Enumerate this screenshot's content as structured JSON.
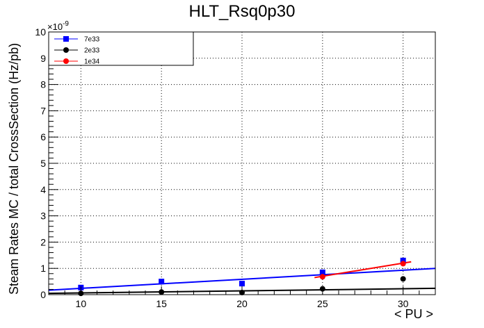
{
  "chart_data": {
    "type": "scatter",
    "title": "HLT_Rsq0p30",
    "xlabel": "< PU >",
    "ylabel": "Steam Rates MC / total CrossSection (Hz/pb)",
    "y_multiplier_label": "×10",
    "y_multiplier_exponent": "-9",
    "xlim": [
      8,
      32
    ],
    "ylim": [
      0,
      10
    ],
    "x_ticks": [
      10,
      15,
      20,
      25,
      30
    ],
    "y_ticks": [
      0,
      1,
      2,
      3,
      4,
      5,
      6,
      7,
      8,
      9,
      10
    ],
    "grid": true,
    "legend_position": "top-left",
    "series": [
      {
        "name": "7e33",
        "color": "#0000ff",
        "marker": "square",
        "x": [
          10,
          15,
          20,
          25,
          30
        ],
        "y": [
          0.27,
          0.5,
          0.42,
          0.85,
          1.3
        ],
        "fit": {
          "x": [
            8,
            32
          ],
          "y": [
            0.17,
            1.0
          ]
        }
      },
      {
        "name": "2e33",
        "color": "#000000",
        "marker": "circle",
        "x": [
          10,
          15,
          20,
          25,
          30
        ],
        "y": [
          0.05,
          0.1,
          0.08,
          0.22,
          0.6
        ],
        "fit": {
          "x": [
            8,
            32
          ],
          "y": [
            0.05,
            0.24
          ]
        }
      },
      {
        "name": "1e34",
        "color": "#ff0000",
        "marker": "circle",
        "x": [
          25,
          30
        ],
        "y": [
          0.68,
          1.18
        ],
        "fit": {
          "x": [
            24.5,
            30.5
          ],
          "y": [
            0.65,
            1.25
          ]
        }
      }
    ]
  }
}
